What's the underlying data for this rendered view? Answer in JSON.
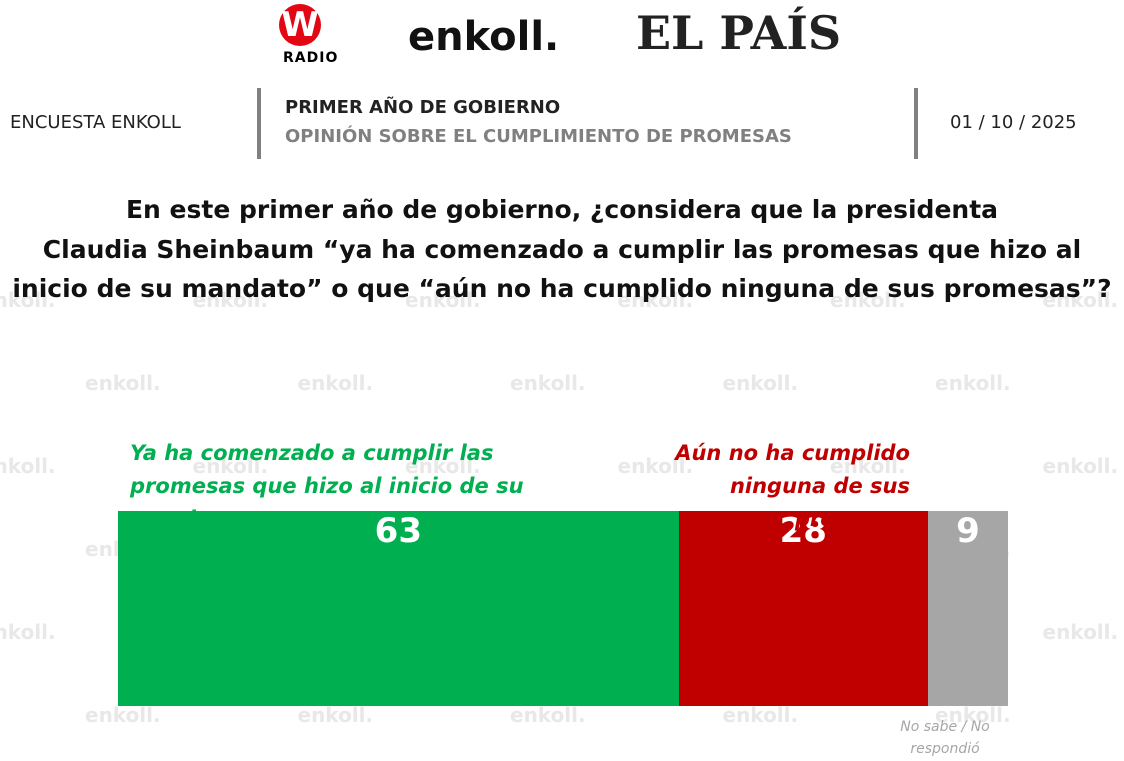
{
  "header": {
    "logos": {
      "w": "W",
      "radio": "RADIO",
      "enkoll": "enkoll.",
      "elpais": "EL PAÍS"
    },
    "survey": "ENCUESTA ENKOLL",
    "section": "PRIMER AÑO DE GOBIERNO",
    "subsection": "OPINIÓN SOBRE EL CUMPLIMIENTO DE PROMESAS",
    "date": "01 / 10 / 2025"
  },
  "watermark": "enkoll.",
  "chart_data": {
    "type": "stacked-bar",
    "title": [
      "En este primer año de gobierno, ¿considera que la presidenta",
      "Claudia Sheinbaum “ya ha comenzado a cumplir las promesas que hizo al",
      "inicio de su mandato” o que “aún no ha cumplido ninguna de sus promesas”?"
    ],
    "xlim": [
      0,
      100
    ],
    "series": [
      {
        "name": "Ya ha comenzado a cumplir las promesas que hizo al inicio de su mandato",
        "color": "#00b050",
        "values": [
          63
        ]
      },
      {
        "name": "Aún no ha cumplido ninguna de sus promesas",
        "color": "#c00000",
        "values": [
          28
        ]
      },
      {
        "name": "No sabe / No respondió",
        "color": "#a6a6a6",
        "values": [
          9
        ]
      }
    ]
  }
}
